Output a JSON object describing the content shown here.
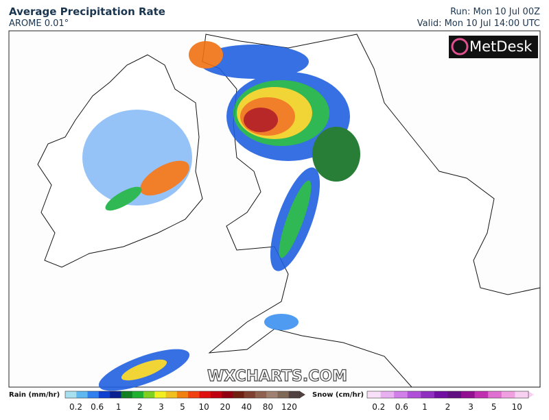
{
  "header": {
    "title": "Average Precipitation Rate",
    "subtitle": "AROME 0.01°",
    "run": "Run: Mon 10 Jul 00Z",
    "valid": "Valid: Mon 10 Jul 14:00 UTC"
  },
  "logo": "MetDesk",
  "watermark": "WXCHARTS.COM",
  "legend": {
    "rain": {
      "label": "Rain (mm/hr)",
      "ticks": [
        0.2,
        0.6,
        1,
        2,
        3,
        5,
        10,
        20,
        40,
        80,
        120
      ],
      "colors": [
        "#a8e0f0",
        "#60b8f0",
        "#3080f0",
        "#1040d0",
        "#0a2090",
        "#108020",
        "#20b030",
        "#80d020",
        "#f0f020",
        "#f0c020",
        "#f08010",
        "#f04010",
        "#e01010",
        "#c00010",
        "#900010",
        "#702010",
        "#804030",
        "#906050",
        "#a08070",
        "#806858",
        "#504040"
      ]
    },
    "snow": {
      "label": "Snow (cm/hr)",
      "ticks": [
        0.2,
        0.6,
        1,
        2,
        3,
        5,
        10
      ],
      "colors": [
        "#f8e0f8",
        "#e8b0f0",
        "#d080e8",
        "#b050d8",
        "#9030c0",
        "#7010a0",
        "#601080",
        "#901090",
        "#c030b0",
        "#e070d0",
        "#f0a0e0",
        "#f8d0f0"
      ]
    }
  }
}
